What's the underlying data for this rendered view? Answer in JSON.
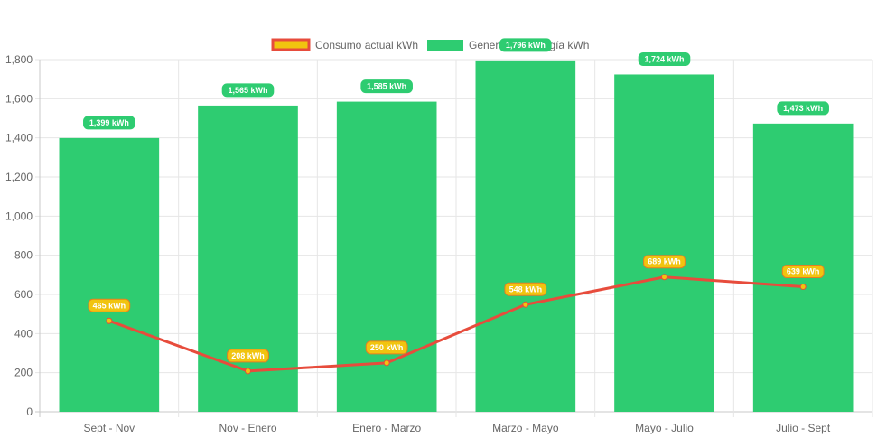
{
  "chart_data": {
    "type": "bar",
    "categories": [
      "Sept - Nov",
      "Nov - Enero",
      "Enero - Marzo",
      "Marzo - Mayo",
      "Mayo - Julio",
      "Julio - Sept"
    ],
    "series": [
      {
        "name": "Consumo actual kWh",
        "render": "line",
        "color": "#e74c3c",
        "fill": "#f1c40f",
        "values": [
          465,
          208,
          250,
          548,
          689,
          639
        ],
        "labels": [
          "465 kWh",
          "208 kWh",
          "250 kWh",
          "548 kWh",
          "689 kWh",
          "639 kWh"
        ]
      },
      {
        "name": "Generación energía kWh",
        "render": "bar",
        "color": "#2ecc71",
        "values": [
          1399,
          1565,
          1585,
          1796,
          1724,
          1473
        ],
        "labels": [
          "1,399 kWh",
          "1,565 kWh",
          "1,585 kWh",
          "1,796 kWh",
          "1,724 kWh",
          "1,473 kWh"
        ]
      }
    ],
    "ylim": [
      0,
      1800
    ],
    "yticks": [
      0,
      200,
      400,
      600,
      800,
      1000,
      1200,
      1400,
      1600,
      1800
    ],
    "ytick_labels": [
      "0",
      "200",
      "400",
      "600",
      "800",
      "1,000",
      "1,200",
      "1,400",
      "1,600",
      "1,800"
    ],
    "grid": true,
    "legend_position": "top-center",
    "title": "",
    "xlabel": "",
    "ylabel": ""
  }
}
